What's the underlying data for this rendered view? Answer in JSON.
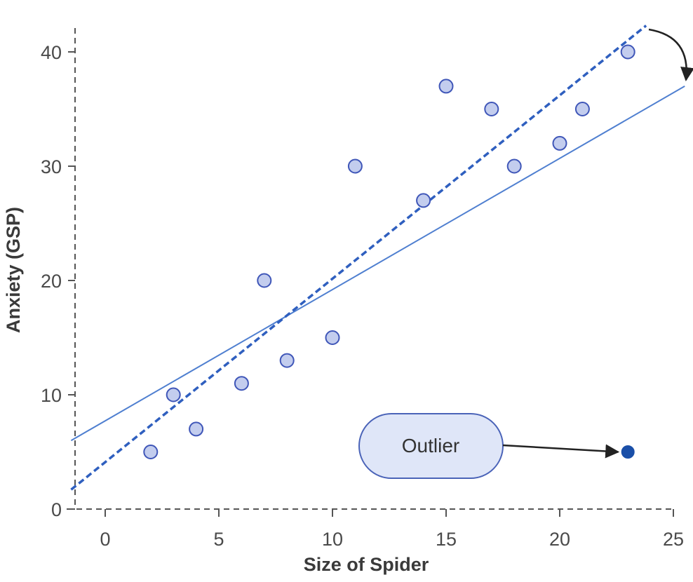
{
  "chart_data": {
    "type": "scatter",
    "title": "",
    "xlabel": "Size of Spider",
    "ylabel": "Anxiety (GSP)",
    "xlim": [
      -1.5,
      25.5
    ],
    "ylim": [
      0,
      42
    ],
    "x_ticks": [
      0,
      5,
      10,
      15,
      20,
      25
    ],
    "y_ticks": [
      0,
      10,
      20,
      30,
      40
    ],
    "grid": false,
    "series": [
      {
        "color": "#c3cdee",
        "points": [
          {
            "x": 2,
            "y": 5
          },
          {
            "x": 3,
            "y": 10
          },
          {
            "x": 4,
            "y": 7
          },
          {
            "x": 6,
            "y": 11
          },
          {
            "x": 7,
            "y": 20
          },
          {
            "x": 8,
            "y": 13
          },
          {
            "x": 10,
            "y": 15
          },
          {
            "x": 11,
            "y": 30
          },
          {
            "x": 14,
            "y": 27
          },
          {
            "x": 15,
            "y": 37
          },
          {
            "x": 17,
            "y": 35
          },
          {
            "x": 18,
            "y": 30
          },
          {
            "x": 20,
            "y": 32
          },
          {
            "x": 21,
            "y": 35
          },
          {
            "x": 23,
            "y": 40
          }
        ]
      }
    ],
    "outlier": {
      "x": 23,
      "y": 5,
      "label": "Outlier",
      "color": "#1a4fa8"
    },
    "fit_lines": [
      {
        "style": "solid",
        "color": "#4f7fd0",
        "from": {
          "x": -1.5,
          "y": 6
        },
        "to": {
          "x": 25.5,
          "y": 37
        }
      },
      {
        "style": "dashed",
        "color": "#2f5fbf",
        "from": {
          "x": -1.5,
          "y": 1.7
        },
        "to": {
          "x": 23.8,
          "y": 42.3
        }
      }
    ]
  }
}
